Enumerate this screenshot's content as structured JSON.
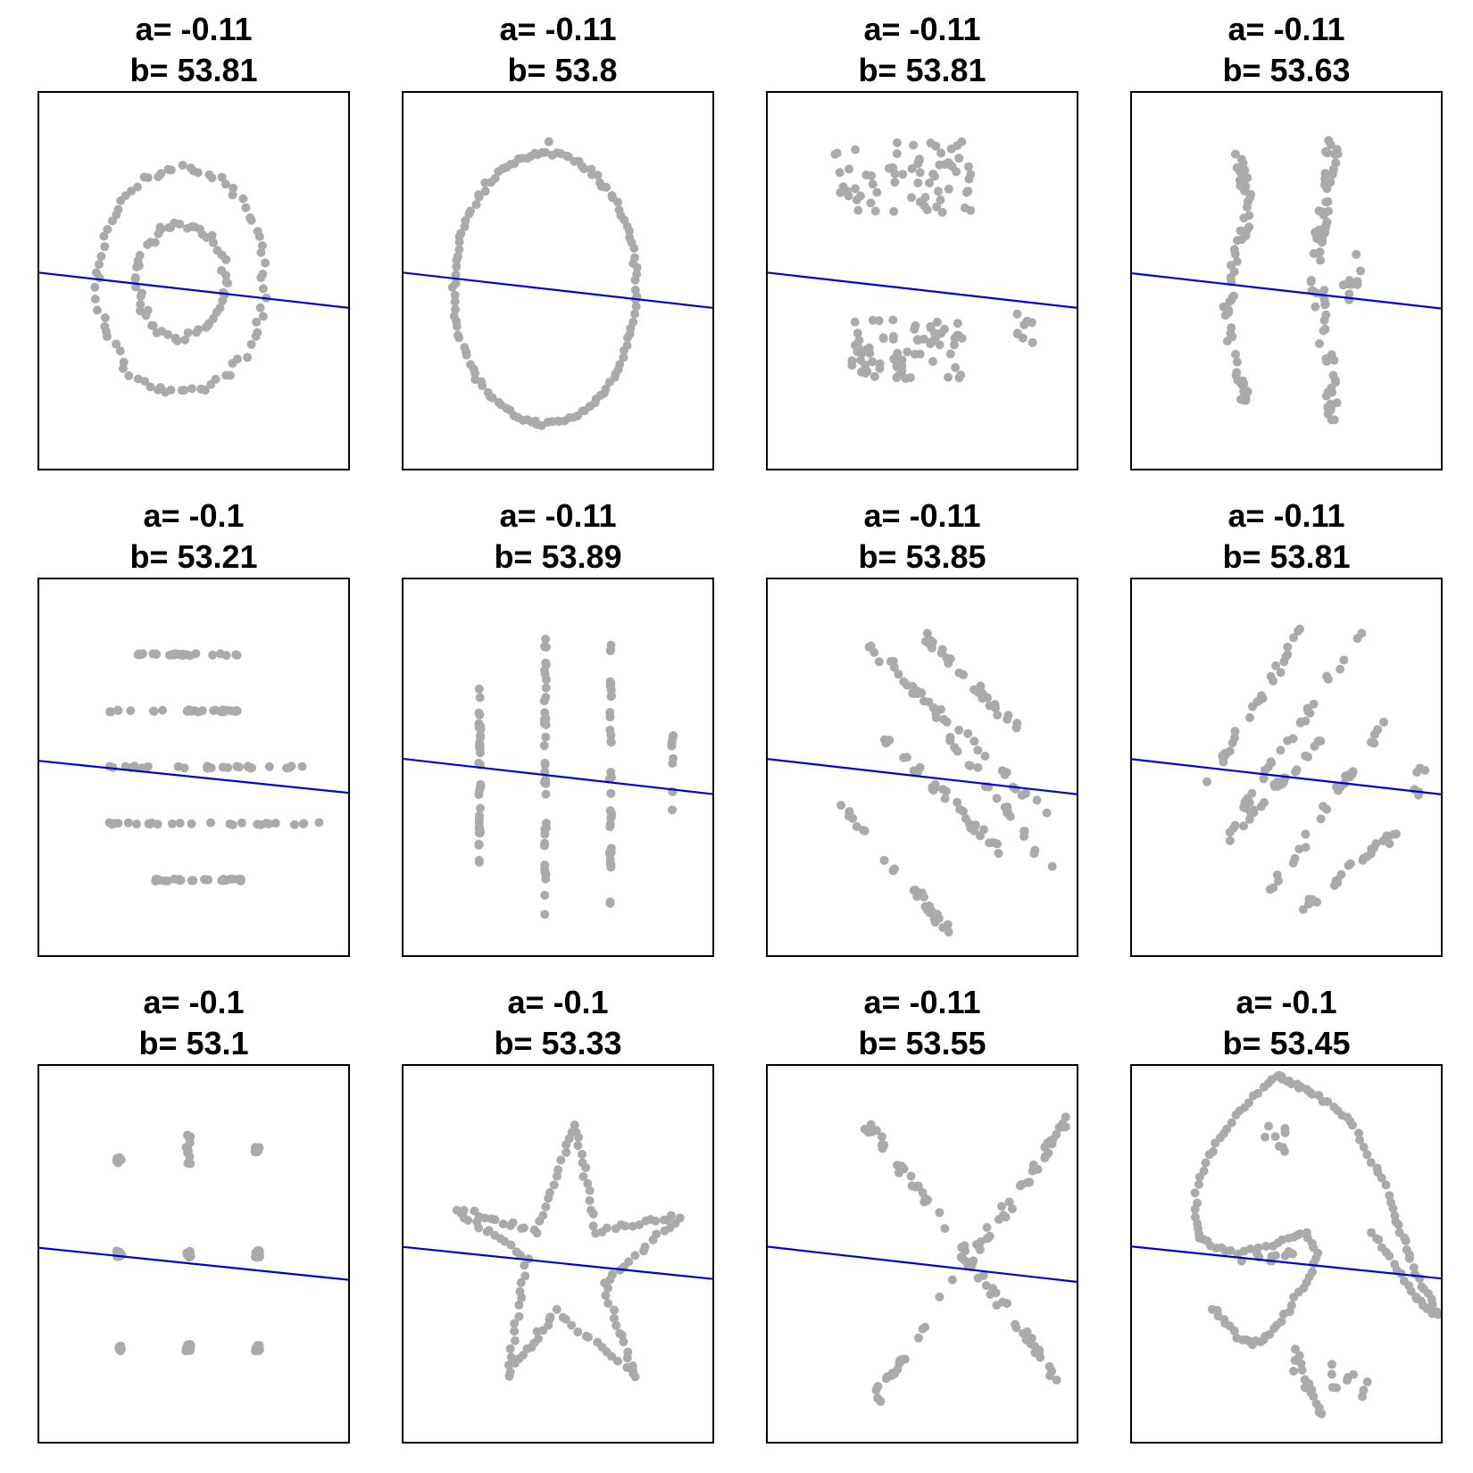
{
  "chart_data": [
    {
      "type": "scatter",
      "shape": "bullseye",
      "title_a": "a= -0.11",
      "title_b": "b= 53.81",
      "slope": -0.11,
      "intercept": 53.81,
      "point_color": "#aaaaaa",
      "line_color": "#0000dd"
    },
    {
      "type": "scatter",
      "shape": "circle",
      "title_a": "a= -0.11",
      "title_b": " b= 53.8",
      "slope": -0.11,
      "intercept": 53.8,
      "point_color": "#aaaaaa",
      "line_color": "#0000dd"
    },
    {
      "type": "scatter",
      "shape": "h_lines_two_clusters",
      "title_a": "a= -0.11",
      "title_b": "b= 53.81",
      "slope": -0.11,
      "intercept": 53.81,
      "point_color": "#aaaaaa",
      "line_color": "#0000dd"
    },
    {
      "type": "scatter",
      "shape": "v_lines",
      "title_a": "a= -0.11",
      "title_b": "b= 53.63",
      "slope": -0.11,
      "intercept": 53.63,
      "point_color": "#aaaaaa",
      "line_color": "#0000dd"
    },
    {
      "type": "scatter",
      "shape": "high_lines",
      "title_a": "a= -0.1",
      "title_b": "b= 53.21",
      "slope": -0.1,
      "intercept": 53.21,
      "point_color": "#aaaaaa",
      "line_color": "#0000dd"
    },
    {
      "type": "scatter",
      "shape": "wide_lines",
      "title_a": "a= -0.11",
      "title_b": "b= 53.89",
      "slope": -0.11,
      "intercept": 53.89,
      "point_color": "#aaaaaa",
      "line_color": "#0000dd"
    },
    {
      "type": "scatter",
      "shape": "slant_down",
      "title_a": "a= -0.11",
      "title_b": "b= 53.85",
      "slope": -0.11,
      "intercept": 53.85,
      "point_color": "#aaaaaa",
      "line_color": "#0000dd"
    },
    {
      "type": "scatter",
      "shape": "slant_up",
      "title_a": "a= -0.11",
      "title_b": "b= 53.81",
      "slope": -0.11,
      "intercept": 53.81,
      "point_color": "#aaaaaa",
      "line_color": "#0000dd"
    },
    {
      "type": "scatter",
      "shape": "dots",
      "title_a": "a= -0.1",
      "title_b": "b= 53.1",
      "slope": -0.1,
      "intercept": 53.1,
      "point_color": "#aaaaaa",
      "line_color": "#0000dd"
    },
    {
      "type": "scatter",
      "shape": "star",
      "title_a": "a= -0.1",
      "title_b": "b= 53.33",
      "slope": -0.1,
      "intercept": 53.33,
      "point_color": "#aaaaaa",
      "line_color": "#0000dd"
    },
    {
      "type": "scatter",
      "shape": "x_shape",
      "title_a": "a= -0.11",
      "title_b": "b= 53.55",
      "slope": -0.11,
      "intercept": 53.55,
      "point_color": "#aaaaaa",
      "line_color": "#0000dd"
    },
    {
      "type": "scatter",
      "shape": "dino",
      "title_a": "a= -0.1",
      "title_b": "b= 53.45",
      "slope": -0.1,
      "intercept": 53.45,
      "point_color": "#aaaaaa",
      "line_color": "#0000dd"
    }
  ]
}
